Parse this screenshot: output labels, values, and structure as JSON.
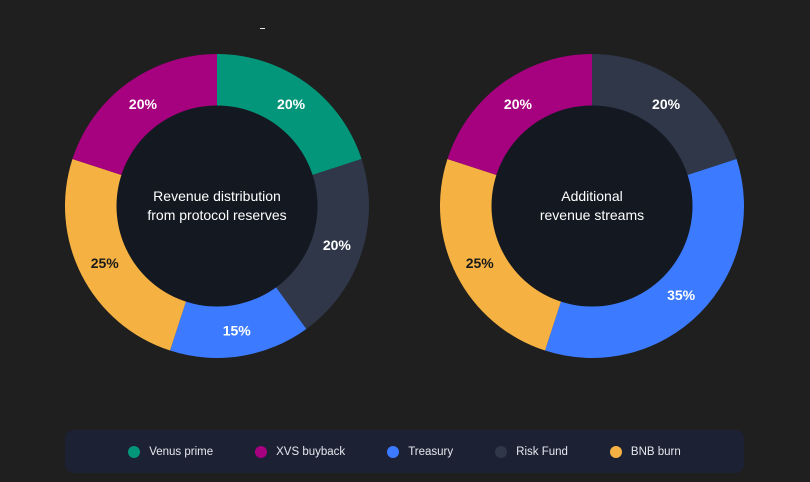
{
  "legend": [
    {
      "key": "venus_prime",
      "label": "Venus prime",
      "color": "#03967a"
    },
    {
      "key": "xvs_buyback",
      "label": "XVS buyback",
      "color": "#a6017f"
    },
    {
      "key": "treasury",
      "label": "Treasury",
      "color": "#3c7bff"
    },
    {
      "key": "risk_fund",
      "label": "Risk Fund",
      "color": "#2f3748"
    },
    {
      "key": "bnb_burn",
      "label": "BNB burn",
      "color": "#f5b242"
    }
  ],
  "center_color": "#141821",
  "chart_data": [
    {
      "type": "pie",
      "title": "Revenue distribution from protocol reserves",
      "title_lines": [
        "Revenue distribution",
        "from protocol reserves"
      ],
      "slices": [
        {
          "label": "Venus prime",
          "value": 20,
          "display": "20%",
          "color": "#03967a",
          "text_color": "#ffffff"
        },
        {
          "label": "Risk Fund",
          "value": 20,
          "display": "20%",
          "color": "#2f3748",
          "text_color": "#ffffff"
        },
        {
          "label": "Treasury",
          "value": 15,
          "display": "15%",
          "color": "#3c7bff",
          "text_color": "#ffffff"
        },
        {
          "label": "BNB burn",
          "value": 25,
          "display": "25%",
          "color": "#f5b242",
          "text_color": "#1a1a1a"
        },
        {
          "label": "XVS buyback",
          "value": 20,
          "display": "20%",
          "color": "#a6017f",
          "text_color": "#ffffff"
        }
      ]
    },
    {
      "type": "pie",
      "title": "Additional revenue streams",
      "title_lines": [
        "Additional",
        "revenue streams"
      ],
      "slices": [
        {
          "label": "Risk Fund",
          "value": 20,
          "display": "20%",
          "color": "#2f3748",
          "text_color": "#ffffff"
        },
        {
          "label": "Treasury",
          "value": 35,
          "display": "35%",
          "color": "#3c7bff",
          "text_color": "#ffffff"
        },
        {
          "label": "BNB burn",
          "value": 25,
          "display": "25%",
          "color": "#f5b242",
          "text_color": "#1a1a1a"
        },
        {
          "label": "XVS buyback",
          "value": 20,
          "display": "20%",
          "color": "#a6017f",
          "text_color": "#ffffff"
        }
      ]
    }
  ]
}
